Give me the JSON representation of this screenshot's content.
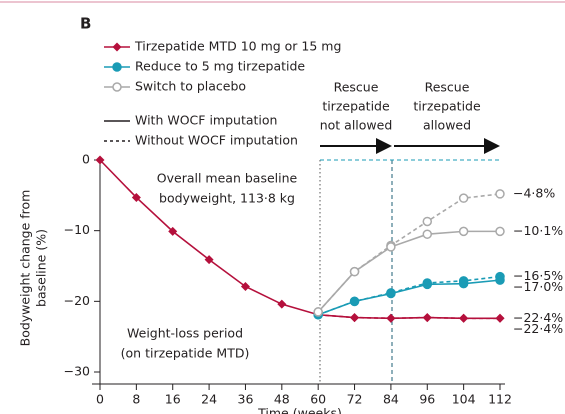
{
  "chart_data": {
    "type": "line",
    "panel_label": "B",
    "x_label": "Time (weeks)",
    "y_label": [
      "Bodyweight change from",
      "baseline (%)"
    ],
    "categories": [
      "0",
      "8",
      "16",
      "24",
      "36",
      "48",
      "60",
      "72",
      "84",
      "96",
      "104",
      "112"
    ],
    "ylim": [
      -30,
      0
    ],
    "yticks": [
      0,
      {
        "value": -10,
        "label": "−10"
      },
      {
        "value": -20,
        "label": "−20"
      },
      {
        "value": -30,
        "label": "−30"
      }
    ],
    "line_style_legend": [
      "With WOCF imputation",
      "Without WOCF imputation"
    ],
    "series": [
      {
        "name": "Tirzepatide MTD 10 mg or 15 mg",
        "color": "#b5103c",
        "marker": "diamond",
        "values": [
          0,
          -5.3,
          -10.1,
          -14.1,
          -17.9,
          -20.4,
          -21.9,
          -22.3,
          -22.4,
          -22.3,
          -22.4,
          -22.4
        ],
        "values_no_wocf": [
          null,
          null,
          null,
          null,
          null,
          null,
          -21.9,
          -22.3,
          -22.4,
          -22.3,
          -22.4,
          -22.4
        ],
        "value_labels": [
          null,
          null,
          null,
          null,
          null,
          null,
          null,
          null,
          null,
          null,
          null,
          "−22·4%"
        ],
        "value_labels_no_wocf": [
          null,
          null,
          null,
          null,
          null,
          null,
          null,
          null,
          null,
          null,
          null,
          "−22·4%"
        ]
      },
      {
        "name": "Reduce to 5 mg tirzepatide",
        "color": "#1a9bb5",
        "marker": "circle",
        "values": [
          null,
          null,
          null,
          null,
          null,
          null,
          -21.9,
          -20.0,
          -18.9,
          -17.6,
          -17.5,
          -17.0
        ],
        "values_no_wocf": [
          null,
          null,
          null,
          null,
          null,
          null,
          -21.9,
          -20.0,
          -18.8,
          -17.4,
          -17.1,
          -16.5
        ],
        "value_labels": [
          null,
          null,
          null,
          null,
          null,
          null,
          null,
          null,
          null,
          null,
          null,
          "−17·0%"
        ],
        "value_labels_no_wocf": [
          null,
          null,
          null,
          null,
          null,
          null,
          null,
          null,
          null,
          null,
          null,
          "−16·5%"
        ]
      },
      {
        "name": "Switch to placebo",
        "color": "#a9a9a9",
        "marker": "open-circle",
        "values": [
          null,
          null,
          null,
          null,
          null,
          null,
          -21.5,
          -15.8,
          -12.3,
          -10.5,
          -10.1,
          -10.1
        ],
        "values_no_wocf": [
          null,
          null,
          null,
          null,
          null,
          null,
          -21.5,
          -15.8,
          -12.1,
          -8.7,
          -5.4,
          -4.8
        ],
        "value_labels": [
          null,
          null,
          null,
          null,
          null,
          null,
          null,
          null,
          null,
          null,
          null,
          "−10·1%"
        ],
        "value_labels_no_wocf": [
          null,
          null,
          null,
          null,
          null,
          null,
          null,
          null,
          null,
          null,
          null,
          "−4·8%"
        ]
      }
    ],
    "annotations": {
      "baseline": [
        "Overall mean baseline",
        "bodyweight, 113·8 kg"
      ],
      "weight_loss": [
        "Weight-loss period",
        "(on tirzepatide MTD)"
      ],
      "rescue_not_allowed": [
        "Rescue",
        "tirzepatide",
        "not allowed"
      ],
      "rescue_allowed": [
        "Rescue",
        "tirzepatide",
        "allowed"
      ]
    }
  }
}
